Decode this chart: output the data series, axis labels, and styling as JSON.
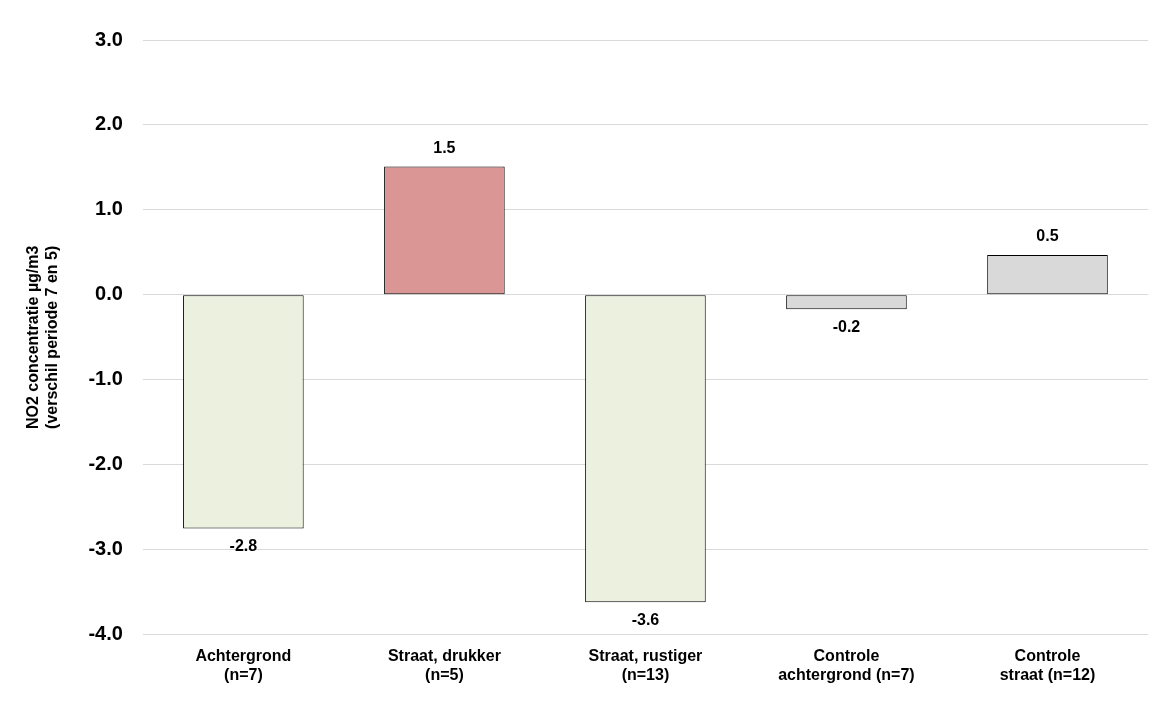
{
  "chart_data": {
    "type": "bar",
    "categories": [
      "Achtergrond\n(n=7)",
      "Straat, drukker\n(n=5)",
      "Straat, rustiger\n(n=13)",
      "Controle\nachtergrond (n=7)",
      "Controle\nstraat (n=12)"
    ],
    "values": [
      -2.75,
      1.51,
      -3.62,
      -0.17,
      0.47
    ],
    "value_labels": [
      "-2.8",
      "1.5",
      "-3.6",
      "-0.2",
      "0.5"
    ],
    "colors": [
      "#ebf1de",
      "#da9694",
      "#ebf1de",
      "#d9d9d9",
      "#d9d9d9"
    ],
    "ylabel": "NO2 concentratie µg/m3\n(verschil periode 7 en 5)",
    "ylim": [
      -4,
      3
    ],
    "yticks": [
      {
        "value": -4,
        "label": "-4.0"
      },
      {
        "value": -3,
        "label": "-3.0"
      },
      {
        "value": -2,
        "label": "-2.0"
      },
      {
        "value": -1,
        "label": "-1.0"
      },
      {
        "value": 0,
        "label": "0.0"
      },
      {
        "value": 1,
        "label": "1.0"
      },
      {
        "value": 2,
        "label": "2.0"
      },
      {
        "value": 3,
        "label": "3.0"
      }
    ],
    "grid": "y",
    "legend": false
  }
}
